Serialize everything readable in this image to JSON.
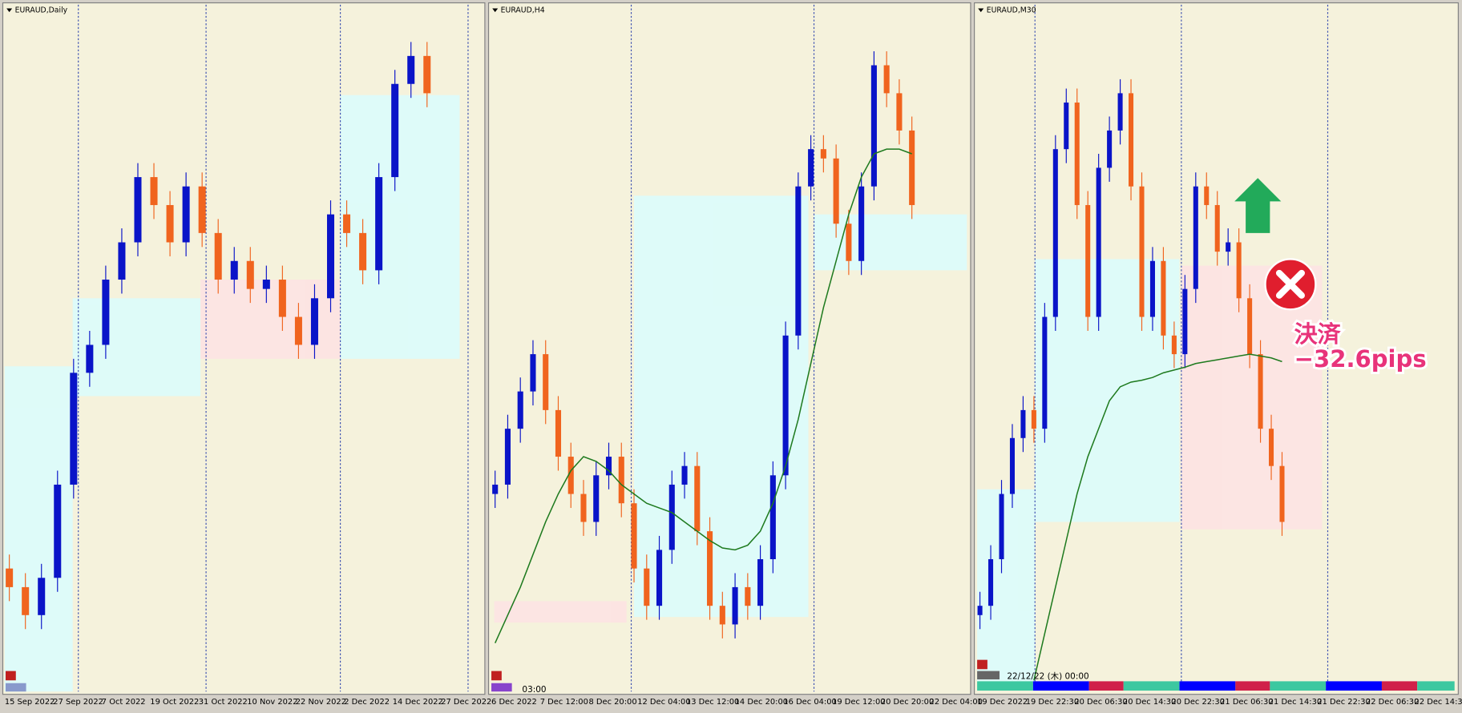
{
  "panels": [
    {
      "title": "EURAUD,Daily",
      "x_labels": [
        "15 Sep 2022",
        "27 Sep 2022",
        "7 Oct 2022",
        "19 Oct 2022",
        "31 Oct 2022",
        "10 Nov 2022",
        "22 Nov 2022",
        "2 Dec 2022",
        "14 Dec 2022",
        "27 Dec 2022"
      ],
      "candles": [
        [
          150,
          165,
          115,
          130
        ],
        [
          130,
          145,
          85,
          100
        ],
        [
          100,
          155,
          85,
          140
        ],
        [
          140,
          255,
          125,
          240
        ],
        [
          240,
          375,
          225,
          360
        ],
        [
          360,
          405,
          345,
          390
        ],
        [
          390,
          475,
          375,
          460
        ],
        [
          460,
          515,
          445,
          500
        ],
        [
          500,
          585,
          485,
          570
        ],
        [
          570,
          585,
          525,
          540
        ],
        [
          540,
          555,
          485,
          500
        ],
        [
          500,
          575,
          485,
          560
        ],
        [
          560,
          575,
          495,
          510
        ],
        [
          510,
          525,
          445,
          460
        ],
        [
          460,
          495,
          445,
          480
        ],
        [
          480,
          495,
          435,
          450
        ],
        [
          450,
          475,
          435,
          460
        ],
        [
          460,
          475,
          405,
          420
        ],
        [
          420,
          435,
          375,
          390
        ],
        [
          390,
          455,
          375,
          440
        ],
        [
          440,
          545,
          425,
          530
        ],
        [
          530,
          545,
          495,
          510
        ],
        [
          510,
          525,
          455,
          470
        ],
        [
          470,
          585,
          455,
          570
        ],
        [
          570,
          685,
          555,
          670
        ],
        [
          670,
          715,
          655,
          700
        ],
        [
          700,
          715,
          645,
          660
        ]
      ]
    },
    {
      "title": "EURAUD,H4",
      "x_labels": [
        "6 Dec 2022",
        "7 Dec 12:00",
        "8 Dec 20:00",
        "12 Dec 04:00",
        "13 Dec 12:00",
        "14 Dec 20:00",
        "16 Dec 04:00",
        "19 Dec 12:00",
        "20 Dec 20:00",
        "22 Dec 04:00"
      ],
      "candles": [
        [
          230,
          255,
          215,
          240
        ],
        [
          240,
          315,
          225,
          300
        ],
        [
          300,
          355,
          285,
          340
        ],
        [
          340,
          395,
          325,
          380
        ],
        [
          380,
          395,
          305,
          320
        ],
        [
          320,
          335,
          255,
          270
        ],
        [
          270,
          285,
          215,
          230
        ],
        [
          230,
          245,
          185,
          200
        ],
        [
          200,
          265,
          185,
          250
        ],
        [
          250,
          285,
          235,
          270
        ],
        [
          270,
          285,
          205,
          220
        ],
        [
          220,
          235,
          135,
          150
        ],
        [
          150,
          165,
          95,
          110
        ],
        [
          110,
          185,
          95,
          170
        ],
        [
          170,
          255,
          155,
          240
        ],
        [
          240,
          275,
          225,
          260
        ],
        [
          260,
          275,
          175,
          190
        ],
        [
          190,
          205,
          95,
          110
        ],
        [
          110,
          125,
          75,
          90
        ],
        [
          90,
          145,
          75,
          130
        ],
        [
          130,
          145,
          95,
          110
        ],
        [
          110,
          175,
          95,
          160
        ],
        [
          160,
          265,
          145,
          250
        ],
        [
          250,
          415,
          235,
          400
        ],
        [
          400,
          575,
          385,
          560
        ],
        [
          560,
          615,
          545,
          600
        ],
        [
          600,
          615,
          575,
          590
        ],
        [
          590,
          605,
          505,
          520
        ],
        [
          520,
          535,
          465,
          480
        ],
        [
          480,
          575,
          465,
          560
        ],
        [
          560,
          705,
          545,
          690
        ],
        [
          690,
          705,
          645,
          660
        ],
        [
          660,
          675,
          605,
          620
        ],
        [
          620,
          635,
          525,
          540
        ]
      ],
      "ma": [
        70,
        100,
        130,
        165,
        200,
        230,
        255,
        270,
        265,
        255,
        240,
        230,
        220,
        215,
        210,
        200,
        190,
        180,
        172,
        170,
        175,
        190,
        220,
        260,
        310,
        370,
        430,
        480,
        530,
        570,
        595,
        600,
        600,
        595
      ],
      "cursor_time": "03:00"
    },
    {
      "title": "EURAUD,M30",
      "x_labels": [
        "19 Dec 2022",
        "19 Dec 22:30",
        "20 Dec 06:30",
        "20 Dec 14:30",
        "20 Dec 22:30",
        "21 Dec 06:30",
        "21 Dec 14:30",
        "21 Dec 22:30",
        "22 Dec 06:30",
        "22 Dec 14:30"
      ],
      "candles": [
        [
          100,
          125,
          85,
          110
        ],
        [
          110,
          175,
          95,
          160
        ],
        [
          160,
          245,
          145,
          230
        ],
        [
          230,
          305,
          215,
          290
        ],
        [
          290,
          335,
          275,
          320
        ],
        [
          320,
          335,
          285,
          300
        ],
        [
          300,
          435,
          285,
          420
        ],
        [
          420,
          615,
          405,
          600
        ],
        [
          600,
          665,
          585,
          650
        ],
        [
          650,
          665,
          525,
          540
        ],
        [
          540,
          555,
          405,
          420
        ],
        [
          420,
          595,
          405,
          580
        ],
        [
          580,
          635,
          565,
          620
        ],
        [
          620,
          675,
          605,
          660
        ],
        [
          660,
          675,
          545,
          560
        ],
        [
          560,
          575,
          405,
          420
        ],
        [
          420,
          495,
          405,
          480
        ],
        [
          480,
          495,
          385,
          400
        ],
        [
          400,
          415,
          365,
          380
        ],
        [
          380,
          465,
          365,
          450
        ],
        [
          450,
          575,
          435,
          560
        ],
        [
          560,
          575,
          525,
          540
        ],
        [
          540,
          555,
          475,
          490
        ],
        [
          490,
          515,
          475,
          500
        ],
        [
          500,
          515,
          425,
          440
        ],
        [
          440,
          455,
          365,
          380
        ],
        [
          380,
          395,
          285,
          300
        ],
        [
          300,
          315,
          245,
          260
        ],
        [
          260,
          275,
          185,
          200
        ]
      ],
      "ma": [
        null,
        null,
        null,
        null,
        null,
        30,
        80,
        130,
        180,
        230,
        270,
        300,
        330,
        345,
        350,
        352,
        355,
        360,
        363,
        366,
        370,
        372,
        374,
        376,
        378,
        380,
        378,
        376,
        372
      ],
      "cursor_time": "22/12/22 (木) 00:00"
    }
  ],
  "colors": {
    "bull": "#0a14c8",
    "bear": "#f0641e",
    "ma": "#1e7a1e"
  },
  "annotation": {
    "line1": "決済",
    "line2": "−32.6pips"
  }
}
